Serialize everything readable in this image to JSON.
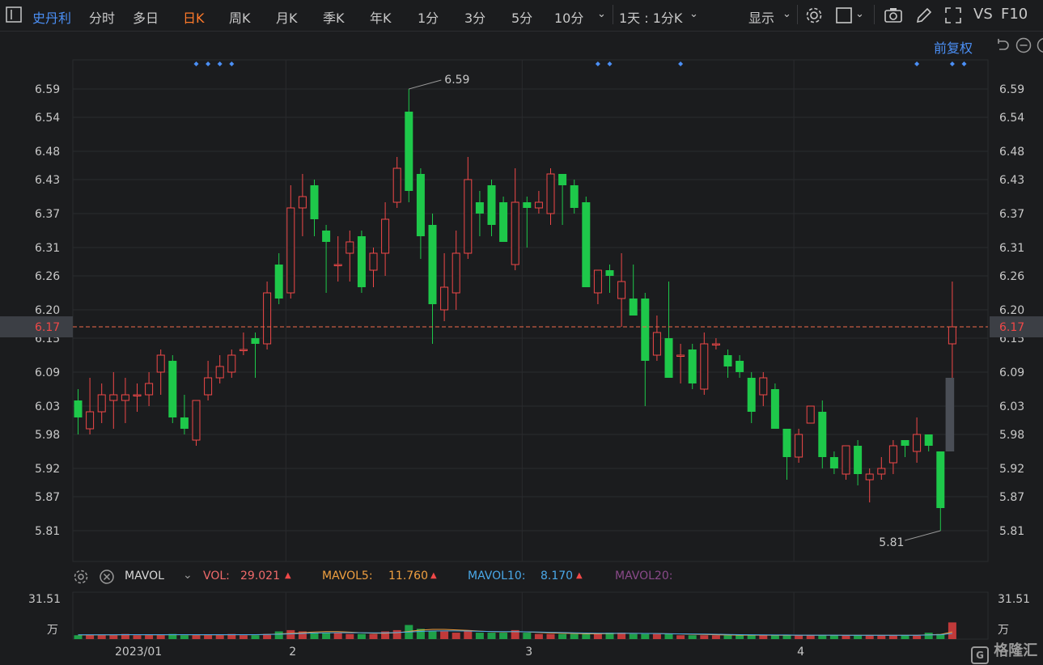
{
  "toolbar": {
    "stock_name": "史丹利",
    "periods": [
      "分时",
      "多日",
      "日K",
      "周K",
      "月K",
      "季K",
      "年K",
      "1分",
      "3分",
      "5分",
      "10分"
    ],
    "active_period": "日K",
    "interval_select": "1天 : 1分K",
    "display_label": "显示",
    "vs_label": "VS",
    "f10_label": "F10"
  },
  "adjust_label": "前复权",
  "price_axis": {
    "ticks": [
      "6.59",
      "6.54",
      "6.48",
      "6.43",
      "6.37",
      "6.31",
      "6.26",
      "6.20",
      "6.15",
      "6.09",
      "6.03",
      "5.98",
      "5.92",
      "5.87",
      "5.81"
    ],
    "current_price": "6.17"
  },
  "annotations": {
    "high_label": "6.59",
    "low_label": "5.81"
  },
  "date_axis": {
    "labels": [
      "2023/01",
      "2",
      "3",
      "4"
    ]
  },
  "indicator": {
    "name": "MAVOL",
    "vol_label": "VOL:",
    "vol_value": "29.021",
    "ma5_label": "MAVOL5:",
    "ma5_value": "11.760",
    "ma10_label": "MAVOL10:",
    "ma10_value": "8.170",
    "ma20_label": "MAVOL20:"
  },
  "volume_axis": {
    "max_label": "31.51",
    "unit_label": "万"
  },
  "watermark": "格隆汇",
  "colors": {
    "up": "#f04848",
    "down": "#1ec84a",
    "accent": "#ff7a2a",
    "link": "#4b8ff5",
    "background": "#1b1c1e"
  },
  "chart_data": {
    "type": "candlestick",
    "ylim": [
      5.78,
      6.62
    ],
    "current_price": 6.17,
    "high": 6.59,
    "low": 5.81,
    "candles": [
      {
        "o": 6.04,
        "c": 6.01,
        "h": 6.06,
        "l": 5.98
      },
      {
        "o": 5.99,
        "c": 6.02,
        "h": 6.08,
        "l": 5.98
      },
      {
        "o": 6.02,
        "c": 6.05,
        "h": 6.07,
        "l": 6.0
      },
      {
        "o": 6.04,
        "c": 6.05,
        "h": 6.09,
        "l": 5.99
      },
      {
        "o": 6.04,
        "c": 6.05,
        "h": 6.08,
        "l": 6.0
      },
      {
        "o": 6.05,
        "c": 6.05,
        "h": 6.07,
        "l": 6.02
      },
      {
        "o": 6.05,
        "c": 6.07,
        "h": 6.09,
        "l": 6.03
      },
      {
        "o": 6.09,
        "c": 6.12,
        "h": 6.13,
        "l": 6.05
      },
      {
        "o": 6.11,
        "c": 6.01,
        "h": 6.12,
        "l": 6.0
      },
      {
        "o": 6.01,
        "c": 5.99,
        "h": 6.05,
        "l": 5.98
      },
      {
        "o": 5.97,
        "c": 6.04,
        "h": 6.04,
        "l": 5.96
      },
      {
        "o": 6.05,
        "c": 6.08,
        "h": 6.11,
        "l": 6.04
      },
      {
        "o": 6.08,
        "c": 6.1,
        "h": 6.12,
        "l": 6.07
      },
      {
        "o": 6.09,
        "c": 6.12,
        "h": 6.13,
        "l": 6.08
      },
      {
        "o": 6.13,
        "c": 6.13,
        "h": 6.16,
        "l": 6.12
      },
      {
        "o": 6.15,
        "c": 6.14,
        "h": 6.16,
        "l": 6.08
      },
      {
        "o": 6.14,
        "c": 6.23,
        "h": 6.25,
        "l": 6.13
      },
      {
        "o": 6.28,
        "c": 6.22,
        "h": 6.3,
        "l": 6.21
      },
      {
        "o": 6.23,
        "c": 6.38,
        "h": 6.42,
        "l": 6.22
      },
      {
        "o": 6.38,
        "c": 6.4,
        "h": 6.44,
        "l": 6.33
      },
      {
        "o": 6.42,
        "c": 6.36,
        "h": 6.43,
        "l": 6.33
      },
      {
        "o": 6.34,
        "c": 6.32,
        "h": 6.35,
        "l": 6.23
      },
      {
        "o": 6.28,
        "c": 6.28,
        "h": 6.33,
        "l": 6.25
      },
      {
        "o": 6.3,
        "c": 6.32,
        "h": 6.34,
        "l": 6.25
      },
      {
        "o": 6.33,
        "c": 6.24,
        "h": 6.34,
        "l": 6.23
      },
      {
        "o": 6.27,
        "c": 6.3,
        "h": 6.31,
        "l": 6.24
      },
      {
        "o": 6.3,
        "c": 6.36,
        "h": 6.39,
        "l": 6.26
      },
      {
        "o": 6.39,
        "c": 6.45,
        "h": 6.47,
        "l": 6.38
      },
      {
        "o": 6.55,
        "c": 6.41,
        "h": 6.59,
        "l": 6.39
      },
      {
        "o": 6.44,
        "c": 6.33,
        "h": 6.45,
        "l": 6.29
      },
      {
        "o": 6.35,
        "c": 6.21,
        "h": 6.37,
        "l": 6.14
      },
      {
        "o": 6.2,
        "c": 6.24,
        "h": 6.3,
        "l": 6.18
      },
      {
        "o": 6.23,
        "c": 6.3,
        "h": 6.34,
        "l": 6.2
      },
      {
        "o": 6.3,
        "c": 6.43,
        "h": 6.47,
        "l": 6.29
      },
      {
        "o": 6.39,
        "c": 6.37,
        "h": 6.41,
        "l": 6.33
      },
      {
        "o": 6.42,
        "c": 6.35,
        "h": 6.43,
        "l": 6.33
      },
      {
        "o": 6.39,
        "c": 6.32,
        "h": 6.4,
        "l": 6.32
      },
      {
        "o": 6.28,
        "c": 6.39,
        "h": 6.45,
        "l": 6.27
      },
      {
        "o": 6.39,
        "c": 6.38,
        "h": 6.4,
        "l": 6.31
      },
      {
        "o": 6.38,
        "c": 6.39,
        "h": 6.41,
        "l": 6.37
      },
      {
        "o": 6.37,
        "c": 6.44,
        "h": 6.45,
        "l": 6.35
      },
      {
        "o": 6.44,
        "c": 6.42,
        "h": 6.44,
        "l": 6.35
      },
      {
        "o": 6.42,
        "c": 6.38,
        "h": 6.43,
        "l": 6.37
      },
      {
        "o": 6.39,
        "c": 6.24,
        "h": 6.4,
        "l": 6.24
      },
      {
        "o": 6.23,
        "c": 6.27,
        "h": 6.27,
        "l": 6.21
      },
      {
        "o": 6.27,
        "c": 6.26,
        "h": 6.28,
        "l": 6.23
      },
      {
        "o": 6.22,
        "c": 6.25,
        "h": 6.3,
        "l": 6.17
      },
      {
        "o": 6.22,
        "c": 6.19,
        "h": 6.28,
        "l": 6.19
      },
      {
        "o": 6.22,
        "c": 6.11,
        "h": 6.23,
        "l": 6.03
      },
      {
        "o": 6.12,
        "c": 6.16,
        "h": 6.19,
        "l": 6.11
      },
      {
        "o": 6.15,
        "c": 6.08,
        "h": 6.25,
        "l": 6.08
      },
      {
        "o": 6.12,
        "c": 6.12,
        "h": 6.14,
        "l": 6.07
      },
      {
        "o": 6.13,
        "c": 6.07,
        "h": 6.14,
        "l": 6.06
      },
      {
        "o": 6.06,
        "c": 6.14,
        "h": 6.16,
        "l": 6.05
      },
      {
        "o": 6.14,
        "c": 6.14,
        "h": 6.15,
        "l": 6.13
      },
      {
        "o": 6.12,
        "c": 6.1,
        "h": 6.13,
        "l": 6.08
      },
      {
        "o": 6.11,
        "c": 6.09,
        "h": 6.12,
        "l": 6.08
      },
      {
        "o": 6.08,
        "c": 6.02,
        "h": 6.09,
        "l": 6.0
      },
      {
        "o": 6.05,
        "c": 6.08,
        "h": 6.09,
        "l": 6.03
      },
      {
        "o": 6.06,
        "c": 5.99,
        "h": 6.07,
        "l": 5.99
      },
      {
        "o": 5.99,
        "c": 5.94,
        "h": 5.99,
        "l": 5.9
      },
      {
        "o": 5.94,
        "c": 5.98,
        "h": 5.99,
        "l": 5.93
      },
      {
        "o": 6.0,
        "c": 6.03,
        "h": 6.03,
        "l": 6.0
      },
      {
        "o": 6.02,
        "c": 5.94,
        "h": 6.04,
        "l": 5.92
      },
      {
        "o": 5.94,
        "c": 5.92,
        "h": 5.95,
        "l": 5.91
      },
      {
        "o": 5.91,
        "c": 5.96,
        "h": 5.96,
        "l": 5.9
      },
      {
        "o": 5.96,
        "c": 5.91,
        "h": 5.97,
        "l": 5.89
      },
      {
        "o": 5.9,
        "c": 5.91,
        "h": 5.92,
        "l": 5.86
      },
      {
        "o": 5.91,
        "c": 5.92,
        "h": 5.94,
        "l": 5.9
      },
      {
        "o": 5.93,
        "c": 5.96,
        "h": 5.97,
        "l": 5.91
      },
      {
        "o": 5.97,
        "c": 5.96,
        "h": 5.97,
        "l": 5.94
      },
      {
        "o": 5.95,
        "c": 5.98,
        "h": 6.01,
        "l": 5.93
      },
      {
        "o": 5.98,
        "c": 5.96,
        "h": 5.98,
        "l": 5.95
      },
      {
        "o": 5.95,
        "c": 5.85,
        "h": 5.95,
        "l": 5.81
      },
      {
        "o": 6.14,
        "c": 6.17,
        "h": 6.25,
        "l": 6.08
      }
    ],
    "volumes": [
      3,
      3,
      3,
      3,
      4,
      3,
      3,
      3,
      4,
      3,
      3,
      3,
      3,
      4,
      3,
      3,
      4,
      6,
      7,
      6,
      5,
      5,
      5,
      4,
      4,
      4,
      6,
      7,
      11,
      8,
      6,
      6,
      5,
      7,
      5,
      5,
      5,
      7,
      5,
      4,
      4,
      4,
      4,
      4,
      4,
      5,
      5,
      4,
      4,
      4,
      4,
      3,
      3,
      3,
      3,
      3,
      3,
      3,
      3,
      3,
      3,
      3,
      3,
      3,
      3,
      3,
      3,
      3,
      3,
      3,
      3,
      3,
      5,
      4,
      13
    ],
    "ma_volume": [
      3.2,
      3.2,
      3.3,
      3.3,
      3.4,
      3.4,
      3.3,
      3.3,
      3.4,
      3.4,
      3.3,
      3.3,
      3.3,
      3.4,
      3.4,
      3.4,
      3.6,
      4.0,
      4.5,
      5.0,
      5.5,
      5.8,
      5.8,
      5.4,
      5.0,
      4.6,
      4.6,
      5.0,
      6.0,
      7.0,
      7.6,
      7.6,
      7.2,
      6.8,
      6.2,
      5.8,
      5.6,
      5.8,
      5.6,
      5.2,
      4.8,
      4.6,
      4.4,
      4.2,
      4.1,
      4.3,
      4.5,
      4.5,
      4.4,
      4.3,
      4.2,
      4.0,
      3.8,
      3.6,
      3.4,
      3.2,
      3.1,
      3.1,
      3.1,
      3.0,
      3.0,
      3.0,
      3.0,
      3.0,
      3.0,
      3.0,
      3.0,
      3.0,
      3.0,
      3.0,
      3.0,
      3.0,
      3.4,
      3.6,
      5.6
    ],
    "ma_volume_2": [
      3.4,
      3.4,
      3.4,
      3.4,
      3.5,
      3.5,
      3.5,
      3.5,
      3.5,
      3.5,
      3.5,
      3.5,
      3.5,
      3.5,
      3.5,
      3.5,
      3.6,
      3.8,
      4.1,
      4.4,
      4.7,
      4.9,
      5.0,
      5.0,
      5.0,
      4.9,
      4.9,
      5.1,
      5.5,
      6.0,
      6.3,
      6.4,
      6.4,
      6.3,
      6.1,
      5.9,
      5.8,
      5.8,
      5.7,
      5.5,
      5.3,
      5.1,
      4.9,
      4.7,
      4.6,
      4.6,
      4.6,
      4.5,
      4.4,
      4.3,
      4.2,
      4.1,
      4.0,
      3.9,
      3.8,
      3.6,
      3.5,
      3.4,
      3.3,
      3.2,
      3.2,
      3.1,
      3.1,
      3.1,
      3.1,
      3.0,
      3.0,
      3.0,
      3.0,
      3.0,
      3.0,
      3.0,
      3.2,
      3.4,
      4.4
    ],
    "volume_max": 31.51,
    "volume_unit": "万",
    "x_labels": [
      {
        "text": "2023/01",
        "index": 5
      },
      {
        "text": "2",
        "index": 18
      },
      {
        "text": "3",
        "index": 38
      },
      {
        "text": "4",
        "index": 61
      }
    ],
    "event_markers": [
      10,
      11,
      12,
      13,
      44,
      45,
      51,
      71,
      74,
      75
    ]
  }
}
